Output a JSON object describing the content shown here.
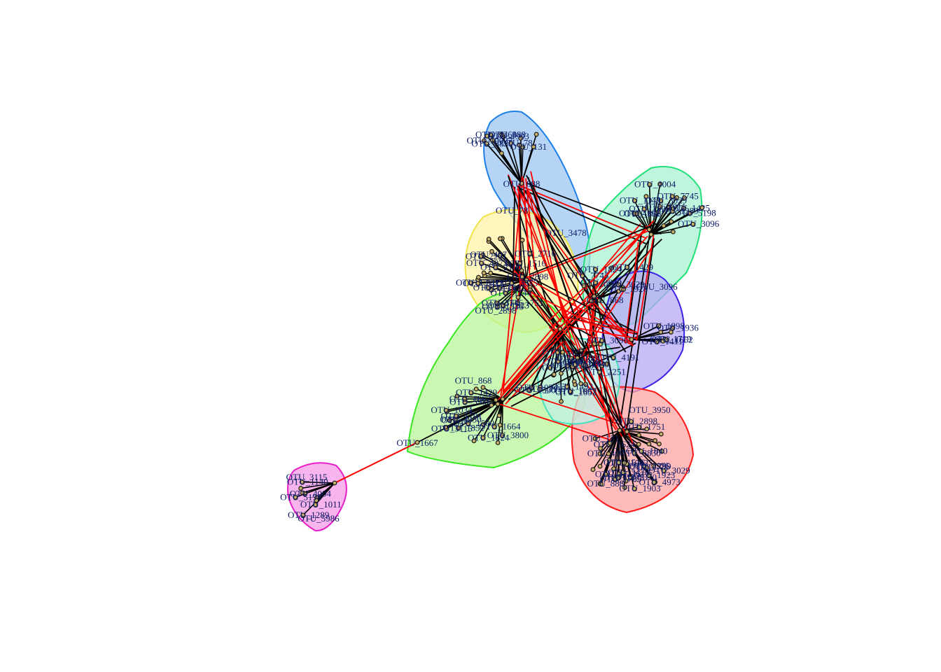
{
  "colors": {
    "background": "#ffffff",
    "label": "#0b1a66",
    "positive_edge": "#000000",
    "negative_edge": "#ff0000",
    "node_fill": "#c8b06a",
    "node_stroke": "#1a1a1a"
  },
  "clusters": [
    {
      "id": "blue-top",
      "fill": "#9ec7f3",
      "stroke": "#1e7fe8"
    },
    {
      "id": "mint-right",
      "fill": "#a8f2d0",
      "stroke": "#22e07a"
    },
    {
      "id": "yellow",
      "fill": "#fff3a8",
      "stroke": "#f0e24a"
    },
    {
      "id": "lime",
      "fill": "#b8f59a",
      "stroke": "#37e81e"
    },
    {
      "id": "violet",
      "fill": "#b7a8f6",
      "stroke": "#3a22e8"
    },
    {
      "id": "red",
      "fill": "#ffa3a3",
      "stroke": "#ff1a1a"
    },
    {
      "id": "cyan-center",
      "fill": "#bff1e5",
      "stroke": "#45e0c0"
    },
    {
      "id": "magenta",
      "fill": "#f7a8ea",
      "stroke": "#e81ec6"
    }
  ],
  "hubs": [
    {
      "id": "OTU_888",
      "label": "OTU_888"
    },
    {
      "id": "OTU_1667",
      "label": "OTU_1667"
    },
    {
      "id": "OTU_78",
      "label": "OTU_78"
    },
    {
      "id": "OTU_868",
      "label": "OTU_868"
    },
    {
      "id": "OTU_3115",
      "label": "OTU_3115"
    },
    {
      "id": "OTU_2898",
      "label": "OTU_2898"
    },
    {
      "id": "OTU_3950",
      "label": "OTU_3950"
    },
    {
      "id": "OTU_3096",
      "label": "OTU_3096"
    },
    {
      "id": "OTU_3478",
      "label": "OTU_3478"
    },
    {
      "id": "OTU_5986",
      "label": "OTU_5986"
    }
  ],
  "labels": [
    "OTU_10027",
    "OTU_8830",
    "OTU_2361",
    "OTU_1903",
    "OTU_888",
    "OTU_78",
    "OTU_131",
    "OTU_3478",
    "OTU_1751",
    "OTU_4973",
    "OTU_1445",
    "OTU_1923",
    "OTU_407",
    "OTU_3975",
    "OTU_2898",
    "OTU_1516",
    "OTU_1370",
    "OTU_1492",
    "OTU_3746",
    "OTU_2716",
    "OTU_2100",
    "OTU_1144",
    "OTU_1546",
    "OTU_2251",
    "OTU_4191",
    "OTU_3096",
    "OTU_1425",
    "OTU_4004",
    "OTU_1289",
    "OTU_1140",
    "OTU_1011",
    "OTU_5198",
    "OTU_7745",
    "OTU_3029",
    "OTU_1928",
    "OTU_868",
    "OTU_1429",
    "OTU_3800",
    "OTU_1824",
    "OTU_1852",
    "OTU_1791",
    "OTU_1667",
    "OTU_3115",
    "OTU_6",
    "OTU_1034",
    "OTU_1500",
    "OTU_5986",
    "OTU_3950",
    "OTU_1664",
    "OTU_1898",
    "OTU_1719",
    "OTU_1936",
    "OTU_1652",
    "OTU_1411",
    "OTU_1624",
    "OTU_1785",
    "OTU_1799",
    "OTU_47",
    "OTU_3029",
    "OTU_1840"
  ]
}
